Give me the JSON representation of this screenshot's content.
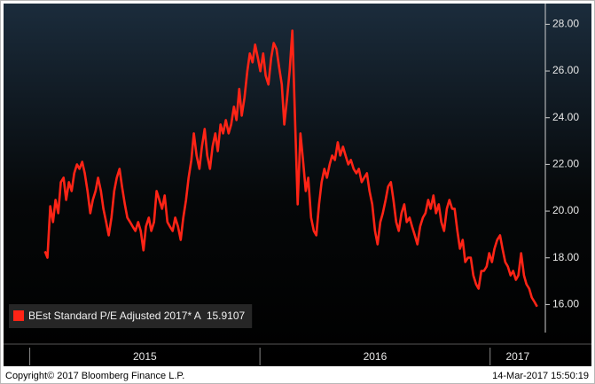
{
  "chart_data": {
    "type": "line",
    "x": [
      2015.066,
      2015.077,
      2015.089,
      2015.101,
      2015.112,
      2015.124,
      2015.135,
      2015.147,
      2015.158,
      2015.17,
      2015.182,
      2015.193,
      2015.205,
      2015.216,
      2015.228,
      2015.239,
      2015.251,
      2015.263,
      2015.274,
      2015.286,
      2015.297,
      2015.309,
      2015.32,
      2015.332,
      2015.343,
      2015.355,
      2015.367,
      2015.378,
      2015.39,
      2015.401,
      2015.413,
      2015.424,
      2015.436,
      2015.447,
      2015.459,
      2015.471,
      2015.482,
      2015.494,
      2015.505,
      2015.517,
      2015.528,
      2015.54,
      2015.551,
      2015.563,
      2015.575,
      2015.586,
      2015.598,
      2015.609,
      2015.621,
      2015.632,
      2015.644,
      2015.656,
      2015.667,
      2015.679,
      2015.69,
      2015.702,
      2015.713,
      2015.725,
      2015.737,
      2015.748,
      2015.76,
      2015.771,
      2015.783,
      2015.794,
      2015.806,
      2015.817,
      2015.829,
      2015.84,
      2015.852,
      2015.864,
      2015.875,
      2015.887,
      2015.898,
      2015.91,
      2015.921,
      2015.933,
      2015.945,
      2015.956,
      2015.968,
      2015.979,
      2015.991,
      2016.002,
      2016.014,
      2016.025,
      2016.037,
      2016.049,
      2016.06,
      2016.072,
      2016.083,
      2016.095,
      2016.106,
      2016.118,
      2016.129,
      2016.141,
      2016.152,
      2016.164,
      2016.176,
      2016.187,
      2016.199,
      2016.21,
      2016.222,
      2016.234,
      2016.245,
      2016.257,
      2016.268,
      2016.28,
      2016.291,
      2016.303,
      2016.314,
      2016.326,
      2016.338,
      2016.349,
      2016.361,
      2016.372,
      2016.384,
      2016.395,
      2016.407,
      2016.419,
      2016.43,
      2016.442,
      2016.453,
      2016.465,
      2016.476,
      2016.488,
      2016.5,
      2016.511,
      2016.523,
      2016.534,
      2016.546,
      2016.557,
      2016.569,
      2016.58,
      2016.592,
      2016.603,
      2016.615,
      2016.627,
      2016.638,
      2016.65,
      2016.661,
      2016.673,
      2016.684,
      2016.696,
      2016.708,
      2016.719,
      2016.731,
      2016.742,
      2016.754,
      2016.765,
      2016.777,
      2016.788,
      2016.8,
      2016.812,
      2016.823,
      2016.835,
      2016.846,
      2016.858,
      2016.869,
      2016.881,
      2016.892,
      2016.904,
      2016.916,
      2016.927,
      2016.939,
      2016.95,
      2016.962,
      2016.973,
      2016.985,
      2016.996,
      2017.008,
      2017.019,
      2017.031,
      2017.043,
      2017.054,
      2017.066,
      2017.077,
      2017.089,
      2017.1,
      2017.112,
      2017.123,
      2017.135,
      2017.147,
      2017.158,
      2017.17,
      2017.181,
      2017.193,
      2017.204
    ],
    "series": [
      {
        "name": "BEst Standard P/E Adjusted 2017* A",
        "color": "#ff2416",
        "values": [
          18.28,
          18.01,
          20.21,
          19.53,
          20.48,
          19.91,
          21.24,
          21.43,
          20.48,
          21.24,
          20.86,
          21.62,
          22.0,
          21.81,
          22.11,
          21.62,
          20.86,
          19.91,
          20.48,
          20.86,
          21.43,
          20.86,
          20.1,
          19.53,
          18.96,
          19.72,
          20.86,
          21.43,
          21.81,
          21.05,
          20.29,
          19.72,
          19.53,
          19.34,
          19.15,
          19.53,
          19.15,
          18.32,
          19.34,
          19.72,
          19.15,
          19.53,
          20.86,
          20.48,
          20.1,
          20.67,
          19.53,
          19.34,
          19.15,
          19.72,
          19.34,
          18.77,
          19.72,
          20.48,
          21.43,
          22.19,
          23.33,
          22.38,
          21.81,
          22.76,
          23.52,
          22.38,
          21.81,
          22.76,
          23.33,
          22.57,
          23.71,
          23.33,
          23.9,
          23.33,
          23.71,
          24.47,
          23.9,
          25.23,
          24.09,
          24.85,
          25.99,
          26.75,
          26.37,
          27.13,
          26.56,
          25.99,
          26.75,
          25.8,
          25.42,
          26.56,
          27.2,
          26.94,
          26.18,
          25.42,
          23.71,
          24.85,
          25.99,
          27.73,
          24.09,
          20.29,
          23.33,
          22.19,
          20.86,
          21.43,
          19.72,
          19.15,
          18.96,
          20.29,
          21.24,
          21.81,
          21.43,
          22.0,
          22.38,
          22.19,
          22.95,
          22.38,
          22.76,
          22.38,
          22.0,
          22.19,
          21.81,
          21.62,
          21.81,
          21.24,
          21.43,
          21.62,
          20.86,
          20.29,
          19.15,
          18.58,
          19.53,
          19.91,
          20.48,
          21.05,
          21.24,
          20.48,
          19.53,
          19.15,
          19.91,
          20.29,
          19.53,
          19.72,
          19.34,
          18.96,
          18.58,
          19.34,
          19.72,
          19.91,
          20.48,
          20.1,
          20.67,
          19.91,
          20.29,
          19.53,
          19.15,
          20.1,
          20.48,
          20.1,
          20.1,
          19.15,
          18.39,
          18.77,
          17.82,
          18.01,
          18.01,
          17.25,
          16.87,
          16.68,
          17.44,
          17.44,
          17.63,
          18.2,
          17.82,
          18.39,
          18.77,
          18.96,
          18.39,
          17.82,
          17.63,
          17.25,
          17.44,
          17.06,
          17.25,
          18.2,
          17.25,
          16.87,
          16.68,
          16.3,
          16.11,
          15.9107
        ]
      }
    ],
    "xlim": [
      2014.89,
      2017.24
    ],
    "xticks": [
      2015,
      2016,
      2017
    ],
    "ylim": [
      14.8,
      28.85
    ],
    "yticks": [
      {
        "value": 16,
        "label": "16.00"
      },
      {
        "value": 18,
        "label": "18.00"
      },
      {
        "value": 20,
        "label": "20.00"
      },
      {
        "value": 22,
        "label": "22.00"
      },
      {
        "value": 24,
        "label": "24.00"
      },
      {
        "value": 26,
        "label": "26.00"
      },
      {
        "value": 28,
        "label": "28.00"
      }
    ],
    "legend": "lower left",
    "footer_left": "Copyright© 2017 Bloomberg Finance L.P.",
    "footer_right": "14-Mar-2017 15:50:19"
  }
}
